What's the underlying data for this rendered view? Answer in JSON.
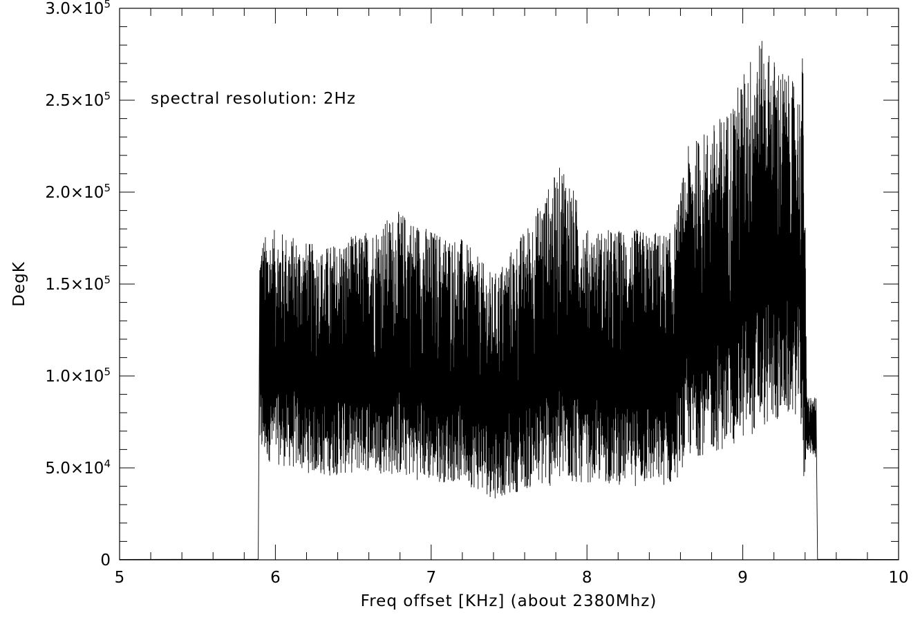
{
  "chart_data": {
    "type": "line",
    "xlabel": "Freq offset [KHz] (about 2380Mhz)",
    "ylabel": "DegK",
    "annotation": "spectral resolution: 2Hz",
    "xlim": [
      5,
      10
    ],
    "ylim": [
      0,
      300000
    ],
    "x_ticks": [
      5,
      6,
      7,
      8,
      9,
      10
    ],
    "x_tick_labels": [
      "5",
      "6",
      "7",
      "8",
      "9",
      "10"
    ],
    "y_ticks": [
      0,
      50000,
      100000,
      150000,
      200000,
      250000,
      300000
    ],
    "y_tick_labels": [
      {
        "mantissa": "0",
        "exp": ""
      },
      {
        "mantissa": "5.0×10",
        "exp": "4"
      },
      {
        "mantissa": "1.0×10",
        "exp": "5"
      },
      {
        "mantissa": "1.5×10",
        "exp": "5"
      },
      {
        "mantissa": "2.0×10",
        "exp": "5"
      },
      {
        "mantissa": "2.5×10",
        "exp": "5"
      },
      {
        "mantissa": "3.0×10",
        "exp": "5"
      }
    ],
    "grid": false,
    "line_color": "#000000",
    "series": [
      {
        "description": "band-limited noise spectrum, zero outside band",
        "band_start_khz": 5.9,
        "band_end_khz": 9.47,
        "envelope": [
          {
            "x": 5.9,
            "low": 55000,
            "high": 175000
          },
          {
            "x": 6.0,
            "low": 52000,
            "high": 180000
          },
          {
            "x": 6.3,
            "low": 45000,
            "high": 170000
          },
          {
            "x": 6.6,
            "low": 48000,
            "high": 180000
          },
          {
            "x": 6.8,
            "low": 45000,
            "high": 190000
          },
          {
            "x": 7.0,
            "low": 42000,
            "high": 180000
          },
          {
            "x": 7.2,
            "low": 42000,
            "high": 175000
          },
          {
            "x": 7.4,
            "low": 33000,
            "high": 155000
          },
          {
            "x": 7.6,
            "low": 38000,
            "high": 180000
          },
          {
            "x": 7.85,
            "low": 40000,
            "high": 218000
          },
          {
            "x": 8.0,
            "low": 42000,
            "high": 180000
          },
          {
            "x": 8.3,
            "low": 40000,
            "high": 180000
          },
          {
            "x": 8.55,
            "low": 40000,
            "high": 178000
          },
          {
            "x": 8.65,
            "low": 55000,
            "high": 225000
          },
          {
            "x": 8.9,
            "low": 60000,
            "high": 245000
          },
          {
            "x": 9.1,
            "low": 70000,
            "high": 285000
          },
          {
            "x": 9.37,
            "low": 80000,
            "high": 255000
          },
          {
            "x": 9.39,
            "low": 30000,
            "high": 287000
          },
          {
            "x": 9.41,
            "low": 60000,
            "high": 90000
          },
          {
            "x": 9.47,
            "low": 55000,
            "high": 88000
          }
        ]
      }
    ]
  }
}
